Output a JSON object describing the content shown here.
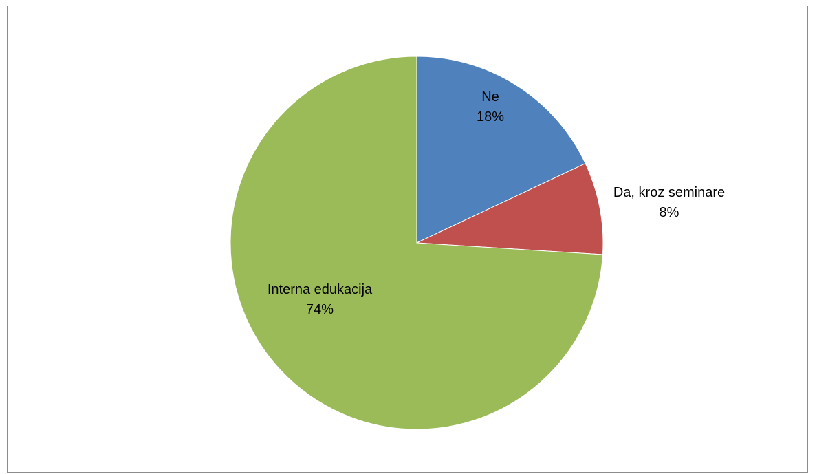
{
  "chart_data": {
    "type": "pie",
    "title": "",
    "legend": "none",
    "slices": [
      {
        "name": "Ne",
        "value": 18,
        "label": "18%",
        "color": "#4f81bd"
      },
      {
        "name": "Da, kroz seminare",
        "value": 8,
        "label": "8%",
        "color": "#c0504d"
      },
      {
        "name": "Interna edukacija",
        "value": 74,
        "label": "74%",
        "color": "#9bbb59"
      }
    ]
  }
}
